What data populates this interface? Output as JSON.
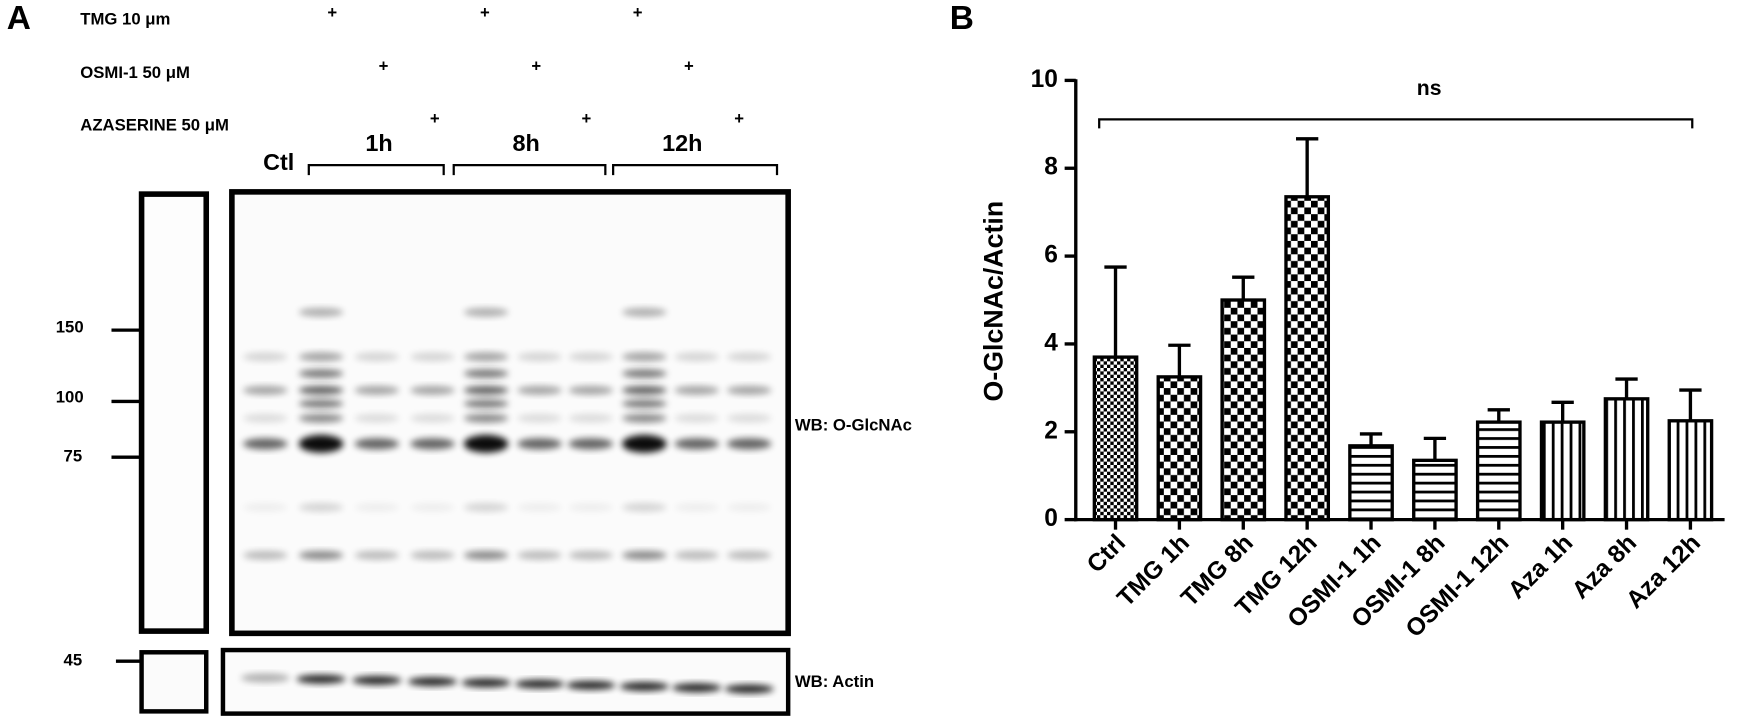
{
  "panel_a": {
    "label": "A",
    "treatments": [
      {
        "label": "TMG 10 μm",
        "marks": [
          "+",
          "+",
          "+"
        ]
      },
      {
        "label": "OSMI-1 50 μM",
        "marks": [
          "+",
          "+",
          "+"
        ]
      },
      {
        "label": "AZASERINE 50 μM",
        "marks": [
          "+",
          "+",
          "+"
        ]
      }
    ],
    "lanes": {
      "control": "Ctl",
      "timepoints": [
        "1h",
        "8h",
        "12h"
      ]
    },
    "markers": [
      "150",
      "100",
      "75",
      "45"
    ],
    "blots": [
      "WB: O-GlcNAc",
      "WB: Actin"
    ]
  },
  "chart_data": {
    "panel_label": "B",
    "type": "bar",
    "categories": [
      "Ctrl",
      "TMG 1h",
      "TMG 8h",
      "TMG 12h",
      "OSMI-1 1h",
      "OSMI-1 8h",
      "OSMI-1 12h",
      "Aza 1h",
      "Aza 8h",
      "Aza 12h"
    ],
    "values": [
      3.7,
      3.25,
      5.0,
      7.35,
      1.68,
      1.35,
      2.22,
      2.22,
      2.75,
      2.25
    ],
    "errors": [
      2.05,
      0.72,
      0.52,
      1.32,
      0.27,
      0.5,
      0.28,
      0.45,
      0.45,
      0.7
    ],
    "patterns": [
      "fine-check",
      "check",
      "check",
      "check",
      "horizontal",
      "horizontal",
      "horizontal",
      "vertical",
      "vertical",
      "vertical"
    ],
    "color": "#000000",
    "ylabel": "O-GlcNAc/Actin",
    "annotation": "ns",
    "ylim": [
      0,
      10
    ],
    "yticks": [
      0,
      2,
      4,
      6,
      8,
      10
    ]
  }
}
